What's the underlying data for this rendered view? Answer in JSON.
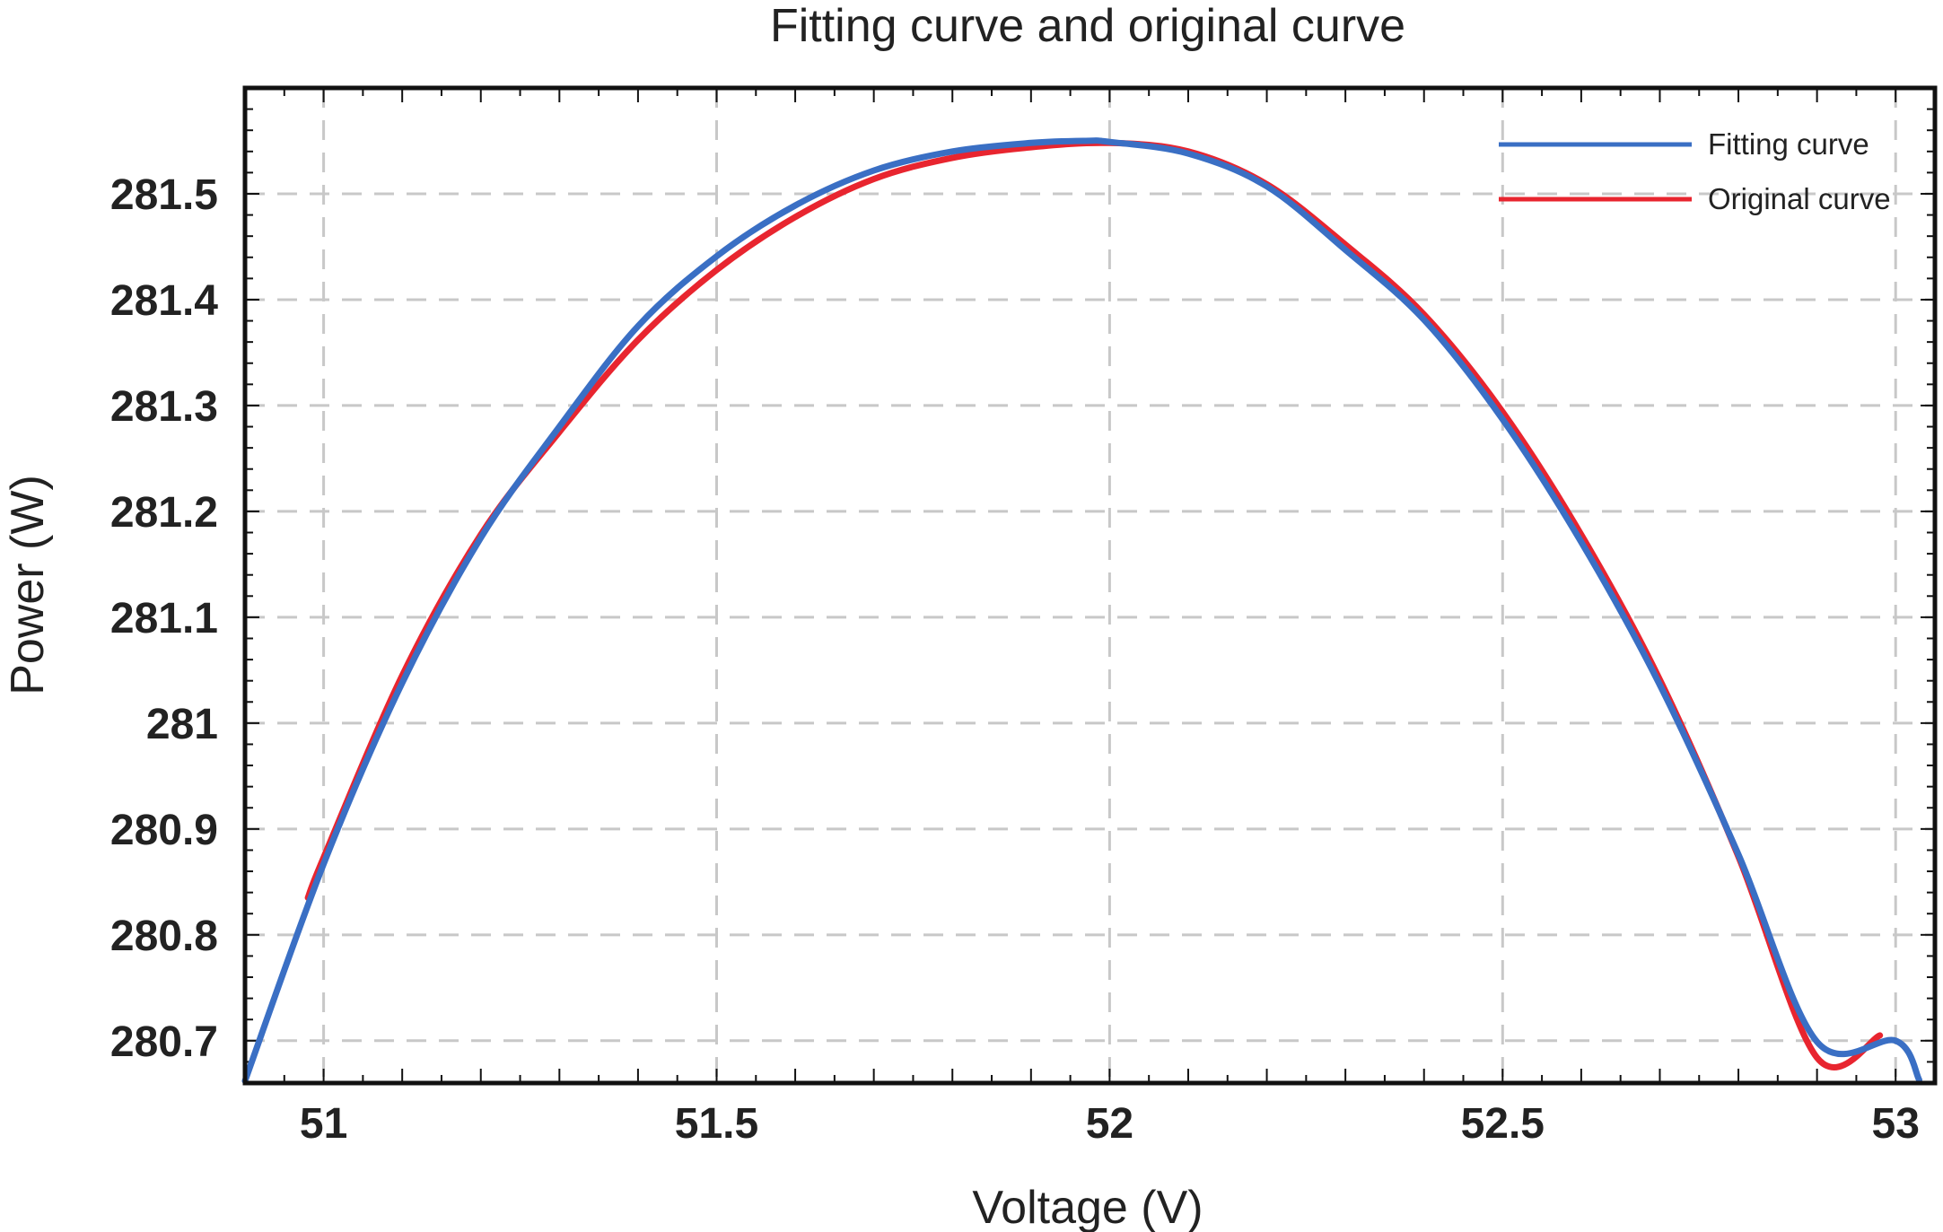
{
  "chart_data": {
    "type": "line",
    "title": "Fitting curve and original curve",
    "xlabel": "Voltage (V)",
    "ylabel": "Power (W)",
    "xlim": [
      50.9,
      53.05
    ],
    "ylim": [
      280.66,
      281.6
    ],
    "grid": true,
    "x_ticks": [
      51,
      51.5,
      52,
      52.5,
      53
    ],
    "x_tick_labels": [
      "51",
      "51.5",
      "52",
      "52.5",
      "53"
    ],
    "y_ticks": [
      280.7,
      280.8,
      280.9,
      281,
      281.1,
      281.2,
      281.3,
      281.4,
      281.5
    ],
    "y_tick_labels": [
      "280.7",
      "280.8",
      "280.9",
      "281",
      "281.1",
      "281.2",
      "281.3",
      "281.4",
      "281.5"
    ],
    "legend_position": "top-right",
    "series": [
      {
        "name": "Fitting curve",
        "color": "#3a6fc4",
        "x": [
          50.9,
          51.0,
          51.1,
          51.2,
          51.3,
          51.4,
          51.5,
          51.6,
          51.7,
          51.8,
          51.9,
          51.97,
          52.0,
          52.1,
          52.2,
          52.3,
          52.4,
          52.5,
          52.6,
          52.7,
          52.8,
          52.9,
          53.0,
          53.03
        ],
        "y": [
          280.662,
          280.867,
          281.038,
          281.175,
          281.28,
          281.375,
          281.441,
          281.489,
          281.522,
          281.54,
          281.548,
          281.55,
          281.549,
          281.538,
          281.507,
          281.447,
          281.381,
          281.287,
          281.171,
          281.036,
          280.876,
          280.699,
          280.7,
          280.663
        ]
      },
      {
        "name": "Original curve",
        "color": "#e8252f",
        "x": [
          50.98,
          51.0,
          51.1,
          51.2,
          51.3,
          51.4,
          51.5,
          51.6,
          51.7,
          51.8,
          51.9,
          52.0,
          52.1,
          52.2,
          52.3,
          52.4,
          52.5,
          52.6,
          52.7,
          52.8,
          52.9,
          52.98
        ],
        "y": [
          280.835,
          280.873,
          281.045,
          281.178,
          281.275,
          281.362,
          281.428,
          281.478,
          281.514,
          281.534,
          281.544,
          281.548,
          281.54,
          281.509,
          281.452,
          281.386,
          281.294,
          281.178,
          281.041,
          280.874,
          280.684,
          280.705
        ]
      }
    ]
  }
}
